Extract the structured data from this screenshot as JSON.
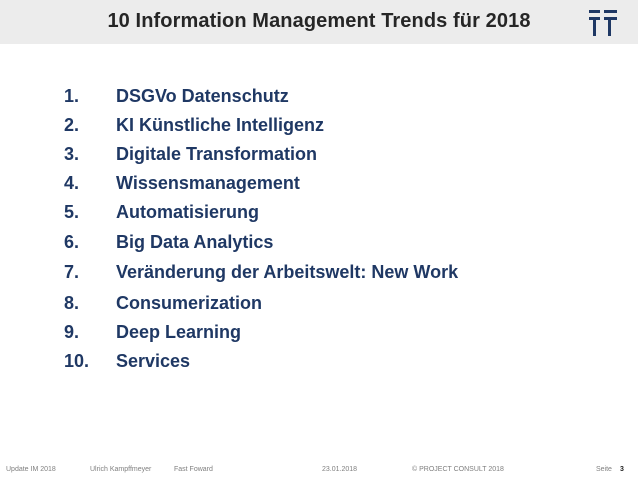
{
  "header": {
    "title": "10 Information Management Trends für 2018",
    "logo_icon": "project-consult-logo-icon",
    "colors": {
      "band": "#ececec",
      "title": "#262626",
      "accent": "#1f3864"
    }
  },
  "trends": [
    {
      "num": "1.",
      "label": "DSGVo Datenschutz"
    },
    {
      "num": "2.",
      "label": "KI Künstliche Intelligenz"
    },
    {
      "num": "3.",
      "label": "Digitale Transformation"
    },
    {
      "num": "4.",
      "label": "Wissensmanagement"
    },
    {
      "num": "5.",
      "label": "Automatisierung"
    },
    {
      "num": "6.",
      "label": "Big Data Analytics"
    },
    {
      "num": "7.",
      "label": "Veränderung der Arbeitswelt: New Work"
    },
    {
      "num": "8.",
      "label": "Consumerization"
    },
    {
      "num": "9.",
      "label": "Deep Learning"
    },
    {
      "num": "10.",
      "label": "Services"
    }
  ],
  "footer": {
    "event": "Update IM 2018",
    "author": "Ulrich Kampffmeyer",
    "section": "Fast Foward",
    "date": "23.01.2018",
    "copyright": "© PROJECT CONSULT 2018",
    "page_label": "Seite",
    "page_number": "3"
  }
}
